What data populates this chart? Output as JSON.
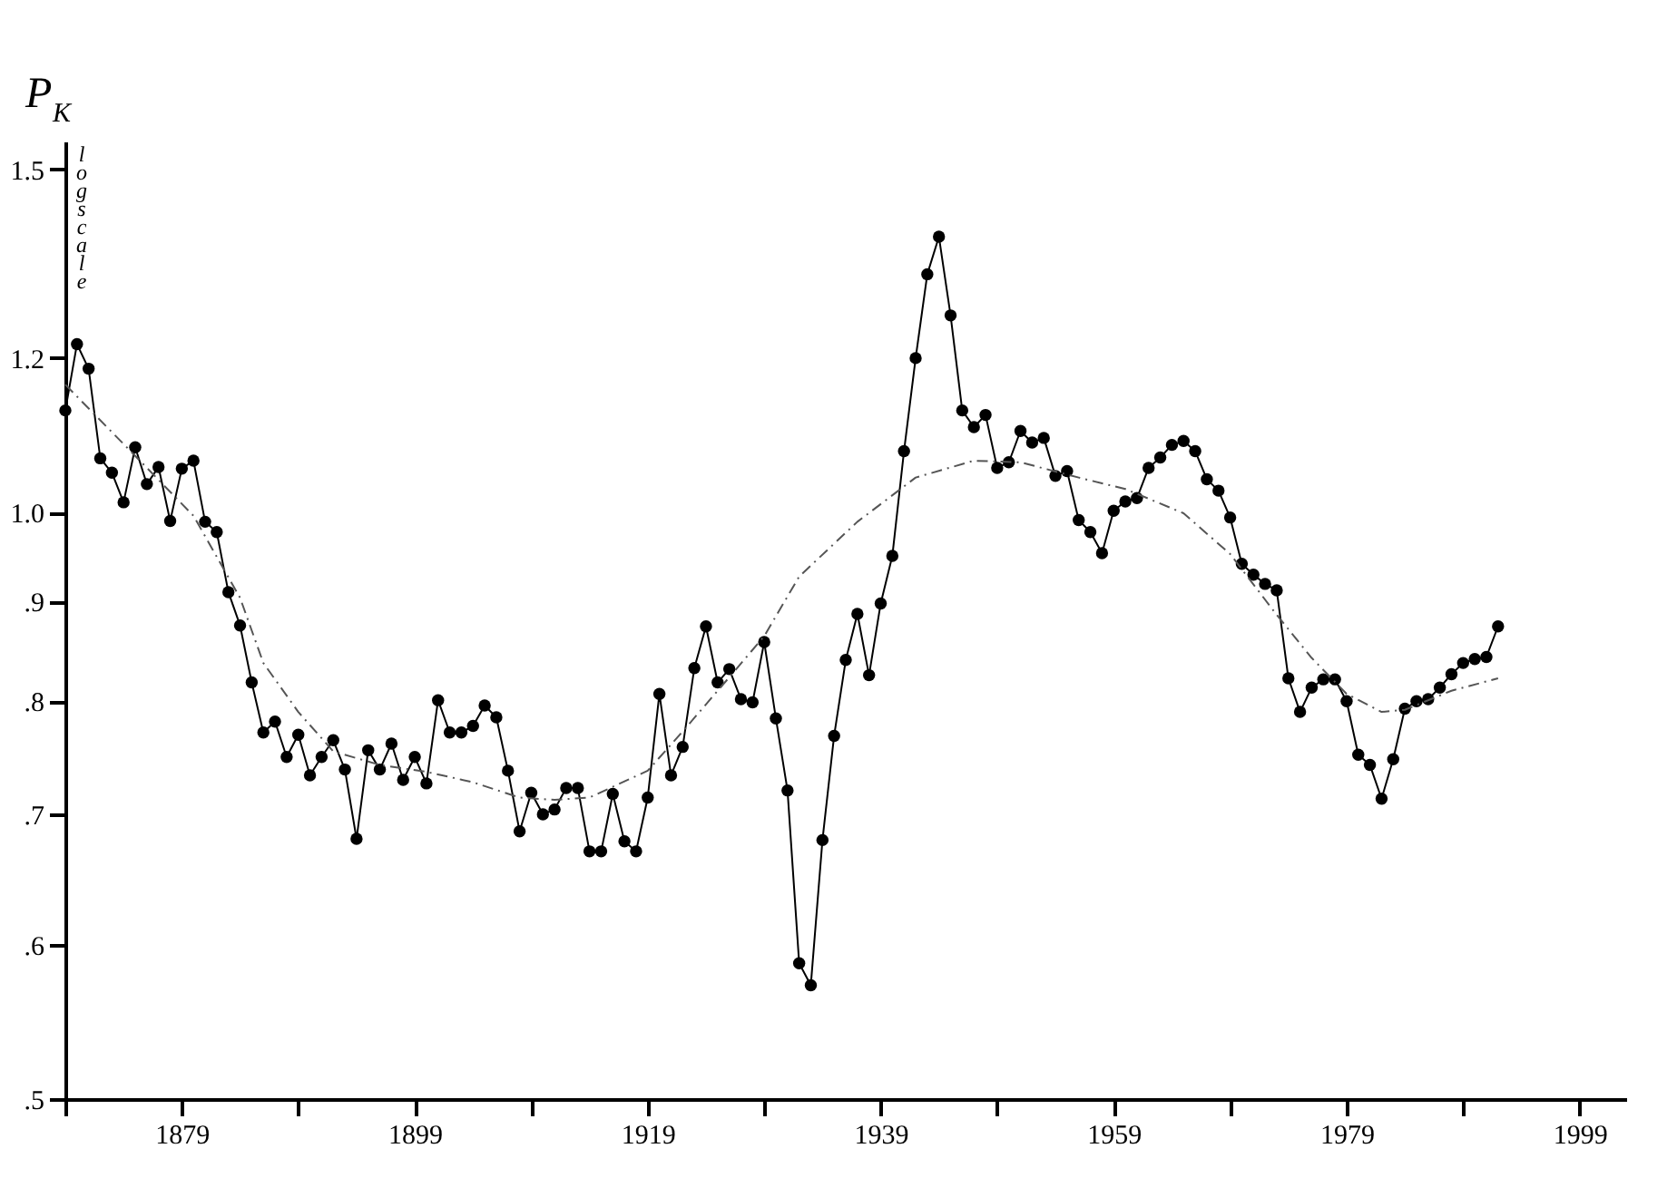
{
  "chart_data": {
    "type": "line",
    "ylabel": "P$_{K}$",
    "annotations": [
      "log scale"
    ],
    "x": [
      1869,
      1870,
      1871,
      1872,
      1873,
      1874,
      1875,
      1876,
      1877,
      1878,
      1879,
      1880,
      1881,
      1882,
      1883,
      1884,
      1885,
      1886,
      1887,
      1888,
      1889,
      1890,
      1891,
      1892,
      1893,
      1894,
      1895,
      1896,
      1897,
      1898,
      1899,
      1900,
      1901,
      1902,
      1903,
      1904,
      1905,
      1906,
      1907,
      1908,
      1909,
      1910,
      1911,
      1912,
      1913,
      1914,
      1915,
      1916,
      1917,
      1918,
      1919,
      1920,
      1921,
      1922,
      1923,
      1924,
      1925,
      1926,
      1927,
      1928,
      1929,
      1930,
      1931,
      1932,
      1933,
      1934,
      1935,
      1936,
      1937,
      1938,
      1939,
      1940,
      1941,
      1942,
      1943,
      1944,
      1945,
      1946,
      1947,
      1948,
      1949,
      1950,
      1951,
      1952,
      1953,
      1954,
      1955,
      1956,
      1957,
      1958,
      1959,
      1960,
      1961,
      1962,
      1963,
      1964,
      1965,
      1966,
      1967,
      1968,
      1969,
      1970,
      1971,
      1972,
      1973,
      1974,
      1975,
      1976,
      1977,
      1978,
      1979,
      1980,
      1981,
      1982,
      1983,
      1984,
      1985,
      1986,
      1987,
      1988,
      1989,
      1990,
      1991,
      1992
    ],
    "series": [
      {
        "color": "#000000",
        "marker": "circle",
        "line_style": "solid",
        "values": [
          1.128,
          1.22,
          1.185,
          1.066,
          1.048,
          1.012,
          1.08,
          1.034,
          1.055,
          0.99,
          1.053,
          1.063,
          0.989,
          0.977,
          0.91,
          0.875,
          0.818,
          0.771,
          0.781,
          0.749,
          0.769,
          0.733,
          0.749,
          0.764,
          0.738,
          0.68,
          0.755,
          0.738,
          0.761,
          0.729,
          0.749,
          0.726,
          0.801,
          0.771,
          0.771,
          0.777,
          0.796,
          0.785,
          0.737,
          0.686,
          0.718,
          0.7,
          0.704,
          0.722,
          0.722,
          0.67,
          0.67,
          0.717,
          0.678,
          0.67,
          0.714,
          0.807,
          0.733,
          0.758,
          0.832,
          0.874,
          0.818,
          0.831,
          0.802,
          0.799,
          0.858,
          0.784,
          0.72,
          0.587,
          0.572,
          0.679,
          0.768,
          0.84,
          0.887,
          0.825,
          0.898,
          0.95,
          1.075,
          1.2,
          1.325,
          1.385,
          1.262,
          1.128,
          1.106,
          1.122,
          1.054,
          1.061,
          1.101,
          1.086,
          1.092,
          1.044,
          1.05,
          0.991,
          0.977,
          0.953,
          1.002,
          1.013,
          1.017,
          1.054,
          1.067,
          1.083,
          1.088,
          1.075,
          1.04,
          1.026,
          0.994,
          0.941,
          0.929,
          0.919,
          0.912,
          0.822,
          0.79,
          0.813,
          0.821,
          0.821,
          0.8,
          0.751,
          0.742,
          0.713,
          0.747,
          0.793,
          0.8,
          0.802,
          0.813,
          0.826,
          0.837,
          0.841,
          0.843,
          0.874
        ]
      },
      {
        "color": "#555555",
        "marker": "none",
        "line_style": "dashed",
        "x": [
          1869,
          1875,
          1880,
          1884,
          1886,
          1889,
          1892,
          1896,
          1900,
          1904,
          1908,
          1911,
          1914,
          1919,
          1922,
          1926,
          1929,
          1932,
          1937,
          1942,
          1947,
          1951,
          1956,
          1960,
          1965,
          1969,
          1973,
          1976,
          1979,
          1982,
          1984,
          1988,
          1992
        ],
        "values": [
          1.163,
          1.069,
          0.996,
          0.904,
          0.837,
          0.79,
          0.754,
          0.742,
          0.736,
          0.727,
          0.714,
          0.712,
          0.714,
          0.737,
          0.772,
          0.823,
          0.864,
          0.927,
          0.989,
          1.042,
          1.063,
          1.061,
          1.042,
          1.028,
          0.999,
          0.952,
          0.886,
          0.842,
          0.807,
          0.79,
          0.792,
          0.81,
          0.822
        ]
      }
    ],
    "log": "y",
    "ylim": [
      0.5,
      1.55
    ],
    "yticks": [
      {
        "value": 0.5,
        "label": ".5"
      },
      {
        "value": 0.6,
        "label": ".6"
      },
      {
        "value": 0.7,
        "label": ".7"
      },
      {
        "value": 0.8,
        "label": ".8"
      },
      {
        "value": 0.9,
        "label": ".9"
      },
      {
        "value": 1.0,
        "label": "1.0"
      },
      {
        "value": 1.2,
        "label": "1.2"
      },
      {
        "value": 1.5,
        "label": "1.5"
      }
    ],
    "xlim": [
      1869,
      2003
    ],
    "xticks": [
      {
        "value": 1869,
        "label": null
      },
      1879,
      {
        "value": 1889,
        "label": null
      },
      1899,
      {
        "value": 1909,
        "label": null
      },
      1919,
      {
        "value": 1929,
        "label": null
      },
      1939,
      {
        "value": 1949,
        "label": null
      },
      1959,
      {
        "value": 1969,
        "label": null
      },
      1979,
      {
        "value": 1989,
        "label": null
      },
      1999
    ],
    "grid": false
  }
}
